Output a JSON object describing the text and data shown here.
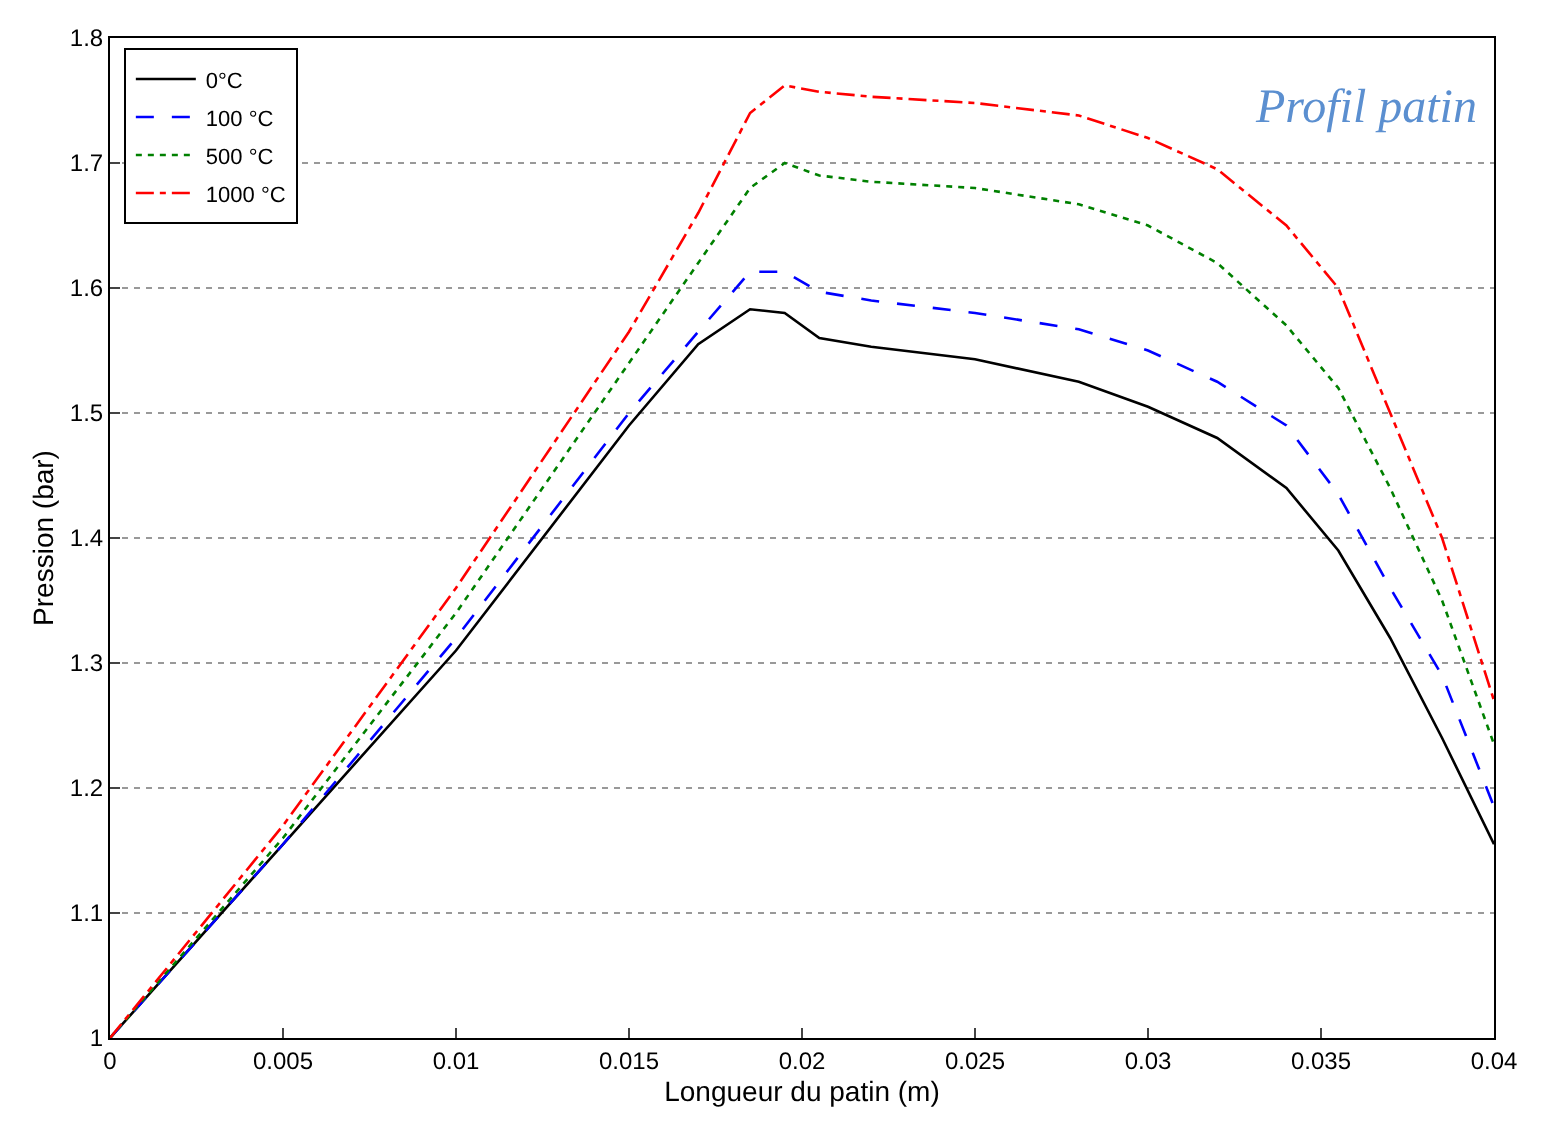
{
  "chart_data": {
    "type": "line",
    "xlabel": "Longueur du patin (m)",
    "ylabel": "Pression (bar)",
    "annotations": [
      "Profil patin"
    ],
    "x": [
      0,
      0.005,
      0.01,
      0.015,
      0.017,
      0.0185,
      0.0195,
      0.0205,
      0.022,
      0.025,
      0.028,
      0.03,
      0.032,
      0.034,
      0.0355,
      0.037,
      0.0385,
      0.04
    ],
    "series": [
      {
        "name": "0°C",
        "color": "#000000",
        "line_style": "solid",
        "values": [
          1.0,
          1.155,
          1.31,
          1.49,
          1.555,
          1.583,
          1.58,
          1.56,
          1.553,
          1.543,
          1.525,
          1.505,
          1.48,
          1.44,
          1.39,
          1.32,
          1.24,
          1.155
        ]
      },
      {
        "name": "100 °C",
        "color": "#0000ff",
        "line_style": "dashed",
        "values": [
          1.0,
          1.155,
          1.32,
          1.5,
          1.565,
          1.613,
          1.613,
          1.597,
          1.59,
          1.58,
          1.567,
          1.55,
          1.525,
          1.49,
          1.435,
          1.36,
          1.29,
          1.185
        ]
      },
      {
        "name": "500 °C",
        "color": "#008000",
        "line_style": "dotted",
        "values": [
          1.0,
          1.16,
          1.34,
          1.54,
          1.62,
          1.68,
          1.7,
          1.69,
          1.685,
          1.68,
          1.667,
          1.65,
          1.62,
          1.57,
          1.52,
          1.44,
          1.35,
          1.235
        ]
      },
      {
        "name": "1000 °C",
        "color": "#ff0000",
        "line_style": "dashdot",
        "values": [
          1.0,
          1.17,
          1.36,
          1.565,
          1.66,
          1.74,
          1.762,
          1.757,
          1.753,
          1.748,
          1.738,
          1.72,
          1.695,
          1.65,
          1.6,
          1.5,
          1.4,
          1.27
        ]
      }
    ],
    "xlim": [
      0,
      0.04
    ],
    "xticks": [
      0,
      0.005,
      0.01,
      0.015,
      0.02,
      0.025,
      0.03,
      0.035,
      0.04
    ],
    "ylim": [
      1,
      1.8
    ],
    "yticks": [
      1,
      1.1,
      1.2,
      1.3,
      1.4,
      1.5,
      1.6,
      1.7,
      1.8
    ],
    "grid": "y",
    "legend": "top left",
    "marker": "none"
  }
}
